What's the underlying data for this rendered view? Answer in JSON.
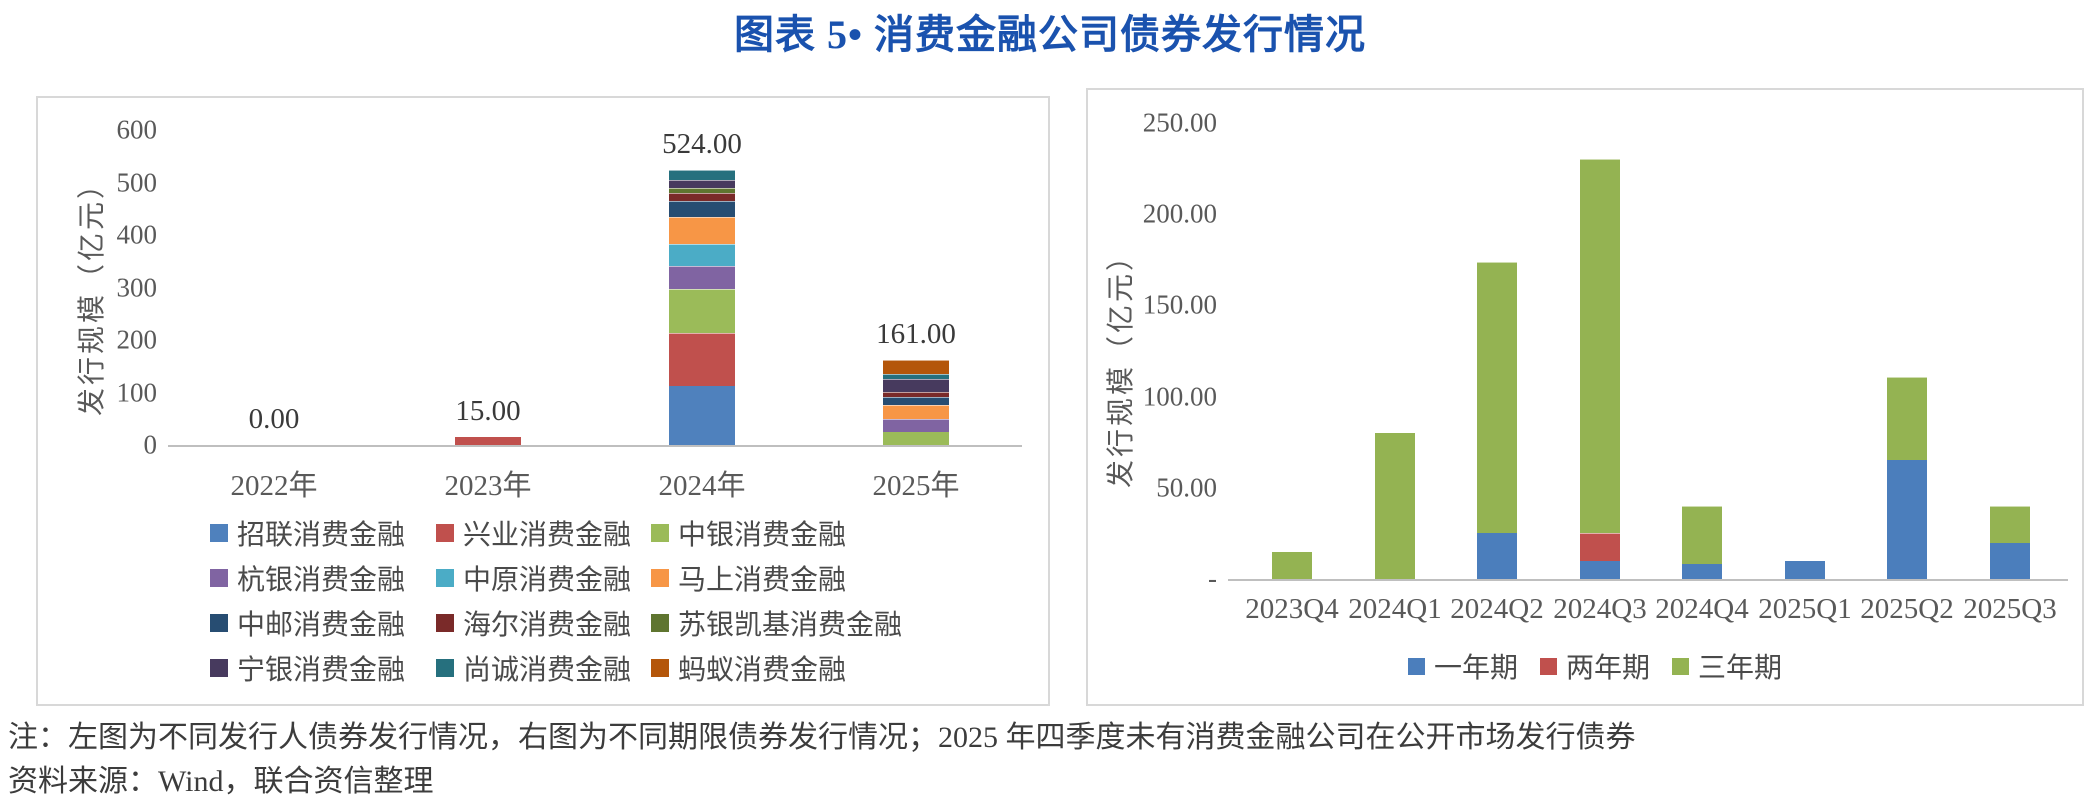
{
  "title": "图表 5• 消费金融公司债券发行情况",
  "notes": {
    "line1": "注：左图为不同发行人债券发行情况，右图为不同期限债券发行情况；2025 年四季度未有消费金融公司在公开市场发行债券",
    "line2": "资料来源：Wind，联合资信整理"
  },
  "chart_data": [
    {
      "type": "bar",
      "stacked": true,
      "title": "",
      "ylabel": "发行规模（亿元）",
      "xlabel": "",
      "categories": [
        "2022年",
        "2023年",
        "2024年",
        "2025年"
      ],
      "ylim": [
        0,
        600
      ],
      "ytick_values": [
        600,
        500,
        400,
        300,
        200,
        100,
        0
      ],
      "ytick_labels": [
        "600",
        "500",
        "400",
        "300",
        "200",
        "100",
        "0"
      ],
      "total_labels": [
        "0.00",
        "15.00",
        "524.00",
        "161.00"
      ],
      "grid": false,
      "legend_position": "bottom",
      "series": [
        {
          "name": "招联消费金融",
          "color": "#4f81bd",
          "values": [
            0,
            0,
            113,
            0
          ]
        },
        {
          "name": "兴业消费金融",
          "color": "#c0504d",
          "values": [
            0,
            15,
            100,
            0
          ]
        },
        {
          "name": "中银消费金融",
          "color": "#9bbb59",
          "values": [
            0,
            0,
            85,
            24
          ]
        },
        {
          "name": "杭银消费金融",
          "color": "#8064a2",
          "values": [
            0,
            0,
            43,
            25
          ]
        },
        {
          "name": "中原消费金融",
          "color": "#4bacc6",
          "values": [
            0,
            0,
            42,
            0
          ]
        },
        {
          "name": "马上消费金融",
          "color": "#f79646",
          "values": [
            0,
            0,
            51,
            27
          ]
        },
        {
          "name": "中邮消费金融",
          "color": "#274d72",
          "values": [
            0,
            0,
            30,
            16
          ]
        },
        {
          "name": "海尔消费金融",
          "color": "#7a2a29",
          "values": [
            0,
            0,
            16,
            9
          ]
        },
        {
          "name": "苏银凯基消费金融",
          "color": "#5f7530",
          "values": [
            0,
            0,
            9,
            0
          ]
        },
        {
          "name": "宁银消费金融",
          "color": "#473a5e",
          "values": [
            0,
            0,
            16,
            25
          ]
        },
        {
          "name": "尚诚消费金融",
          "color": "#26707e",
          "values": [
            0,
            0,
            19,
            10
          ]
        },
        {
          "name": "蚂蚁消费金融",
          "color": "#b4560a",
          "values": [
            0,
            0,
            0,
            25
          ]
        }
      ]
    },
    {
      "type": "bar",
      "stacked": true,
      "title": "",
      "ylabel": "发行规模（亿元）",
      "xlabel": "",
      "categories": [
        "2023Q4",
        "2024Q1",
        "2024Q2",
        "2024Q3",
        "2024Q4",
        "2025Q1",
        "2025Q2",
        "2025Q3"
      ],
      "ylim": [
        0,
        250
      ],
      "ytick_values": [
        250,
        200,
        150,
        100,
        50,
        0
      ],
      "ytick_labels": [
        "250.00",
        "200.00",
        "150.00",
        "100.00",
        "50.00",
        "-"
      ],
      "grid": false,
      "legend_position": "bottom",
      "series": [
        {
          "name": "一年期",
          "color": "#4b7ebc",
          "values": [
            0,
            0,
            25,
            10,
            8,
            10,
            65,
            20
          ]
        },
        {
          "name": "两年期",
          "color": "#c0504d",
          "values": [
            0,
            0,
            0,
            15,
            0,
            0,
            0,
            0
          ]
        },
        {
          "name": "三年期",
          "color": "#94b352",
          "values": [
            15,
            80,
            149,
            205,
            32,
            0,
            46,
            20
          ]
        }
      ]
    }
  ]
}
